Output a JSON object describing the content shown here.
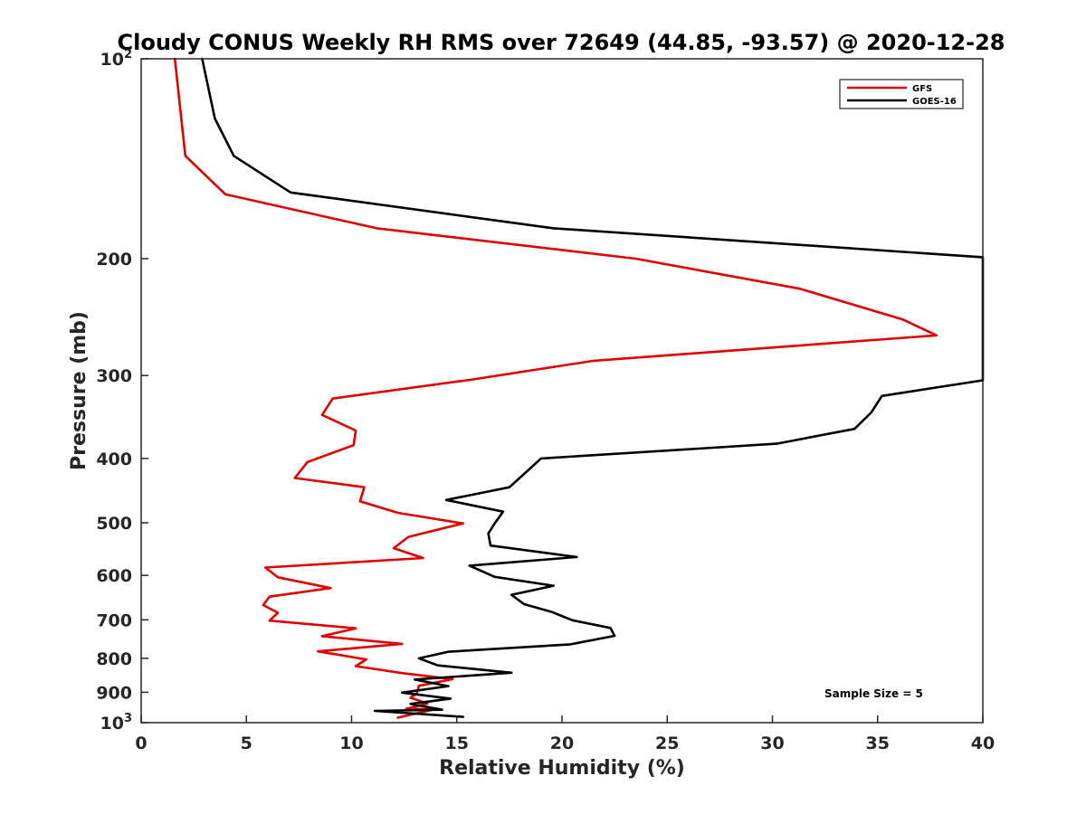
{
  "chart_data": {
    "type": "line",
    "title": "Cloudy CONUS Weekly RH RMS over 72649 (44.85, -93.57) @ 2020-12-28",
    "xlabel": "Relative Humidity (%)",
    "ylabel": "Pressure (mb)",
    "xlim": [
      0,
      40
    ],
    "ylim": [
      1000,
      100
    ],
    "yscale": "log",
    "x_ticks": [
      0,
      5,
      10,
      15,
      20,
      25,
      30,
      35,
      40
    ],
    "x_tick_labels": [
      "0",
      "5",
      "10",
      "15",
      "20",
      "25",
      "30",
      "35",
      "40"
    ],
    "y_ticks": [
      100,
      200,
      300,
      400,
      500,
      600,
      700,
      800,
      900,
      1000
    ],
    "y_tick_labels": [
      {
        "base": "10",
        "sup": "2"
      },
      {
        "base": "200",
        "sup": ""
      },
      {
        "base": "300",
        "sup": ""
      },
      {
        "base": "400",
        "sup": ""
      },
      {
        "base": "500",
        "sup": ""
      },
      {
        "base": "600",
        "sup": ""
      },
      {
        "base": "700",
        "sup": ""
      },
      {
        "base": "800",
        "sup": ""
      },
      {
        "base": "900",
        "sup": ""
      },
      {
        "base": "10",
        "sup": "3"
      }
    ],
    "grid": false,
    "legend_position": "top-right",
    "annotation": "Sample Size = 5",
    "series": [
      {
        "name": "GFS",
        "color": "#e00000",
        "points": [
          [
            1.6,
            100
          ],
          [
            2.1,
            140
          ],
          [
            4.0,
            160
          ],
          [
            11.2,
            180
          ],
          [
            23.5,
            200
          ],
          [
            31.3,
            222
          ],
          [
            36.2,
            247
          ],
          [
            37.8,
            261
          ],
          [
            21.5,
            285
          ],
          [
            15.8,
            304
          ],
          [
            9.1,
            325
          ],
          [
            8.6,
            344
          ],
          [
            10.2,
            363
          ],
          [
            10.1,
            382
          ],
          [
            7.9,
            405
          ],
          [
            7.3,
            428
          ],
          [
            10.6,
            442
          ],
          [
            10.4,
            464
          ],
          [
            12.2,
            483
          ],
          [
            15.3,
            501
          ],
          [
            12.7,
            525
          ],
          [
            12.0,
            546
          ],
          [
            13.4,
            565
          ],
          [
            5.9,
            584
          ],
          [
            6.5,
            604
          ],
          [
            9.0,
            627
          ],
          [
            6.1,
            646
          ],
          [
            5.8,
            665
          ],
          [
            6.5,
            683
          ],
          [
            6.1,
            702
          ],
          [
            10.2,
            721
          ],
          [
            8.6,
            741
          ],
          [
            12.4,
            761
          ],
          [
            8.4,
            781
          ],
          [
            10.7,
            803
          ],
          [
            10.2,
            822
          ],
          [
            12.4,
            842
          ],
          [
            14.8,
            860
          ],
          [
            13.2,
            880
          ],
          [
            13.1,
            903
          ],
          [
            12.8,
            917
          ],
          [
            13.6,
            936
          ],
          [
            12.6,
            953
          ],
          [
            13.9,
            955
          ],
          [
            12.2,
            983
          ]
        ]
      },
      {
        "name": "GOES-16",
        "color": "#000000",
        "points": [
          [
            2.9,
            100
          ],
          [
            3.5,
            123
          ],
          [
            4.4,
            140
          ],
          [
            7.1,
            159
          ],
          [
            19.6,
            180
          ],
          [
            40.0,
            199
          ],
          [
            40.0,
            305
          ],
          [
            35.2,
            322
          ],
          [
            34.7,
            341
          ],
          [
            33.9,
            361
          ],
          [
            30.2,
            380
          ],
          [
            19.0,
            400
          ],
          [
            18.2,
            422
          ],
          [
            17.5,
            442
          ],
          [
            14.5,
            462
          ],
          [
            17.2,
            481
          ],
          [
            16.8,
            501
          ],
          [
            16.5,
            519
          ],
          [
            16.6,
            541
          ],
          [
            20.7,
            563
          ],
          [
            15.6,
            580
          ],
          [
            16.8,
            603
          ],
          [
            19.6,
            622
          ],
          [
            17.6,
            642
          ],
          [
            18.2,
            663
          ],
          [
            19.5,
            681
          ],
          [
            20.5,
            701
          ],
          [
            22.3,
            720
          ],
          [
            22.5,
            740
          ],
          [
            20.4,
            762
          ],
          [
            14.6,
            782
          ],
          [
            13.2,
            800
          ],
          [
            14.1,
            820
          ],
          [
            17.6,
            841
          ],
          [
            13.0,
            861
          ],
          [
            14.6,
            881
          ],
          [
            12.4,
            901
          ],
          [
            14.7,
            920
          ],
          [
            12.8,
            937
          ],
          [
            14.3,
            956
          ],
          [
            11.1,
            960
          ],
          [
            15.3,
            980
          ]
        ]
      }
    ]
  }
}
